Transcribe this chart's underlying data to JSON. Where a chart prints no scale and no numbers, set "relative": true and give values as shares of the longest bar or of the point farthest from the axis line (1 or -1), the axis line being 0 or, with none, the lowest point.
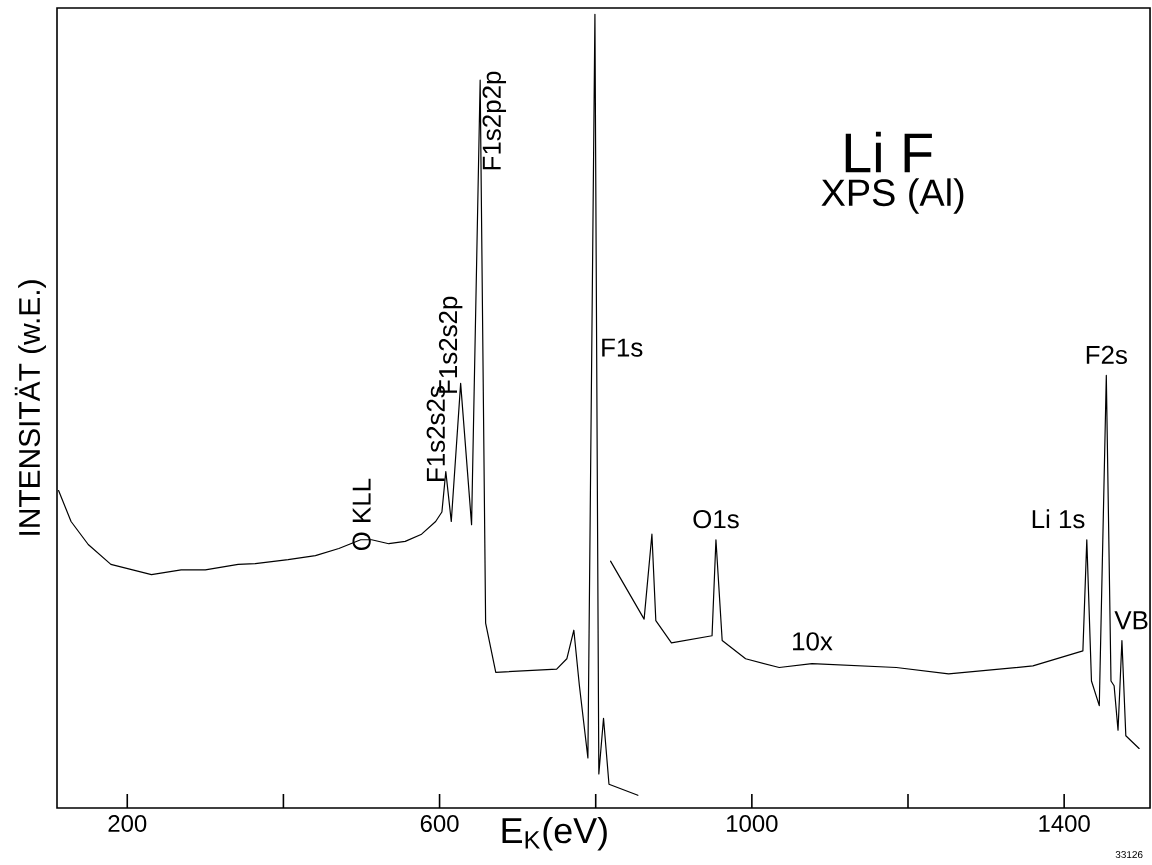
{
  "chart_data": {
    "type": "line",
    "title": "Li F",
    "subtitle": "XPS (Al)",
    "xlabel": "E$_{K}$(eV)",
    "ylabel": "INTENSITÄT (w.E.)",
    "relative": true,
    "xlim": [
      110,
      1510
    ],
    "xticks": [
      200,
      {
        "value": 400,
        "label": null
      },
      600,
      {
        "value": 800,
        "label": null
      },
      1000,
      {
        "value": 1200,
        "label": null
      },
      1400
    ],
    "grid": false,
    "series": [
      {
        "color": "#000000",
        "x": [
          112,
          128,
          150,
          179,
          231,
          269,
          300,
          342,
          364,
          406,
          441,
          471,
          499,
          513,
          535,
          556,
          577,
          595,
          603,
          608,
          615,
          627,
          641,
          652,
          659,
          672,
          750,
          763,
          772,
          779,
          790,
          799,
          804,
          810,
          817,
          854
        ],
        "values": [
          0.4,
          0.361,
          0.332,
          0.307,
          0.294,
          0.3,
          0.3,
          0.307,
          0.308,
          0.313,
          0.318,
          0.327,
          0.338,
          0.338,
          0.333,
          0.336,
          0.345,
          0.361,
          0.373,
          0.424,
          0.361,
          0.535,
          0.357,
          0.917,
          0.233,
          0.171,
          0.175,
          0.188,
          0.224,
          0.155,
          0.063,
          1.0,
          0.043,
          0.113,
          0.03,
          0.016
        ]
      },
      {
        "name": "10x",
        "color": "#000000",
        "x": [
          819,
          862,
          872,
          877,
          897,
          949,
          954,
          962,
          992,
          1035,
          1077,
          1185,
          1252,
          1360,
          1424,
          1429,
          1435,
          1445,
          1454,
          1460,
          1464,
          1469,
          1474,
          1479,
          1496
        ],
        "values": [
          0.311,
          0.238,
          0.345,
          0.236,
          0.208,
          0.217,
          0.338,
          0.211,
          0.188,
          0.177,
          0.182,
          0.177,
          0.169,
          0.179,
          0.198,
          0.338,
          0.16,
          0.129,
          0.545,
          0.16,
          0.154,
          0.098,
          0.211,
          0.091,
          0.075
        ]
      }
    ],
    "annotations": [
      {
        "text": "O KLL",
        "x": 513,
        "y": 0.338
      },
      {
        "text": "F1s2s2s",
        "x": 608,
        "y": 0.424
      },
      {
        "text": "F1s2s2p",
        "x": 627,
        "y": 0.535
      },
      {
        "text": "F1s2p2p",
        "x": 652,
        "y": 0.917
      },
      {
        "text": "F1s",
        "x": 800,
        "y": 0.58
      },
      {
        "text": "O1s",
        "x": 954,
        "y": 0.338
      },
      {
        "text": "Li 1s",
        "x": 1429,
        "y": 0.338
      },
      {
        "text": "F2s",
        "x": 1454,
        "y": 0.545
      },
      {
        "text": "VB",
        "x": 1474,
        "y": 0.211
      },
      "33126"
    ]
  }
}
